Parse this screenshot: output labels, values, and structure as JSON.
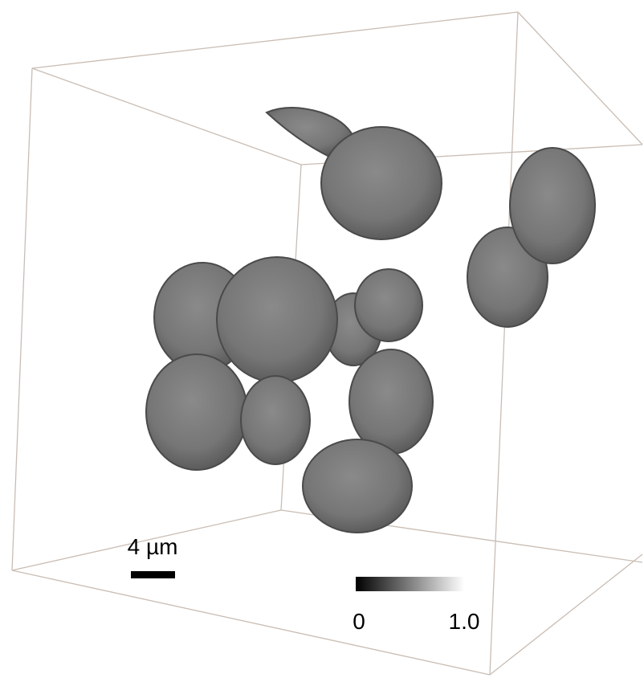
{
  "scale_bar": {
    "label": "4 µm"
  },
  "colorbar": {
    "ticks": [
      "0",
      "1.0"
    ]
  }
}
